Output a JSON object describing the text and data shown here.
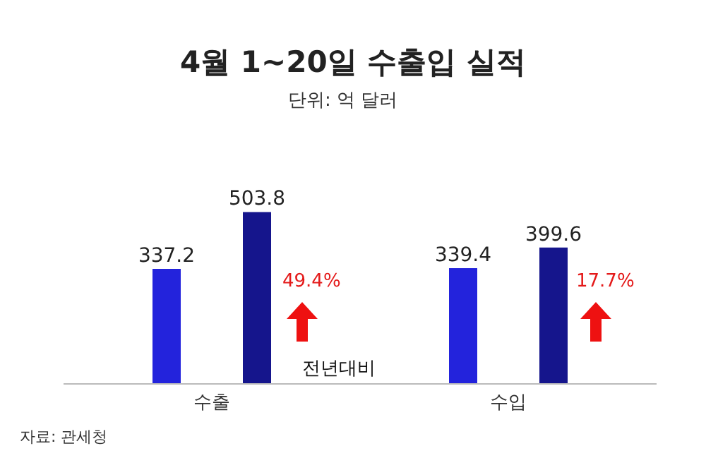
{
  "chart_data": {
    "type": "bar",
    "title": "4월 1~20일 수출입 실적",
    "subtitle": "단위: 억 달러",
    "categories": [
      "수출",
      "수입"
    ],
    "series": [
      {
        "color": "#2323dc",
        "values": [
          337.2,
          339.4
        ]
      },
      {
        "color": "#15158c",
        "values": [
          503.8,
          399.6
        ]
      }
    ],
    "data_labels": true,
    "annotations": [
      "49.4%",
      "전년대비",
      "17.7%",
      "자료: 관세청"
    ]
  }
}
